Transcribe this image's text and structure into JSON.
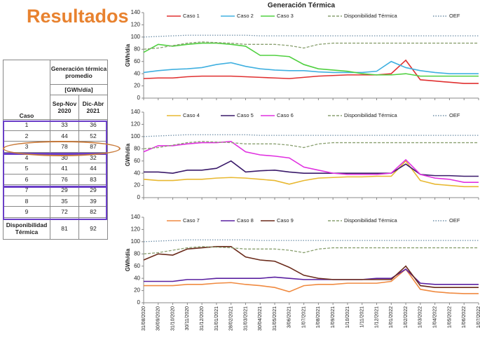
{
  "title": "Resultados",
  "table": {
    "header": {
      "group": "Generación térmica promedio",
      "unit": "[GWh/día]",
      "columns": [
        "Caso",
        "Sep-Nov 2020",
        "Dic-Abr 2021"
      ]
    },
    "rows": [
      [
        "1",
        33,
        36
      ],
      [
        "2",
        44,
        52
      ],
      [
        "3",
        78,
        87
      ],
      [
        "4",
        30,
        32
      ],
      [
        "5",
        41,
        44
      ],
      [
        "6",
        76,
        83
      ],
      [
        "7",
        29,
        29
      ],
      [
        "8",
        35,
        39
      ],
      [
        "9",
        72,
        82
      ],
      [
        "Disponibilidad Térmica",
        81,
        92
      ]
    ]
  },
  "chart_data": [
    {
      "type": "line",
      "title": "Generación Térmica",
      "ylabel": "GWh/día",
      "ylim": [
        0,
        140
      ],
      "yticks": [
        0,
        20,
        40,
        60,
        80,
        100,
        120,
        140
      ],
      "grid": false,
      "categories": [
        null,
        null,
        null,
        null,
        null,
        null,
        null,
        null,
        null,
        null,
        null,
        null,
        null,
        null,
        null,
        null,
        null,
        null,
        null,
        null,
        null,
        null,
        null,
        null
      ],
      "series": [
        {
          "name": "Caso 1",
          "color": "#e03030",
          "dash": "solid",
          "values": [
            32,
            33,
            33,
            35,
            36,
            36,
            36,
            35,
            34,
            33,
            32,
            34,
            36,
            37,
            38,
            38,
            38,
            40,
            62,
            30,
            28,
            26,
            24,
            24
          ]
        },
        {
          "name": "Caso 2",
          "color": "#40b0e0",
          "dash": "solid",
          "values": [
            42,
            45,
            47,
            48,
            50,
            55,
            58,
            52,
            48,
            46,
            45,
            45,
            43,
            42,
            42,
            42,
            44,
            60,
            50,
            45,
            42,
            40,
            40,
            40
          ]
        },
        {
          "name": "Caso 3",
          "color": "#50d040",
          "dash": "solid",
          "values": [
            75,
            88,
            85,
            88,
            90,
            90,
            88,
            85,
            70,
            70,
            68,
            55,
            48,
            46,
            44,
            40,
            38,
            38,
            40,
            36,
            36,
            36,
            36,
            36
          ]
        },
        {
          "name": "Disponibilidad Térmica",
          "color": "#8aa070",
          "dash": "dashed",
          "values": [
            80,
            82,
            86,
            90,
            92,
            91,
            90,
            88,
            88,
            88,
            86,
            82,
            88,
            90,
            90,
            90,
            90,
            90,
            90,
            90,
            90,
            90,
            90,
            90
          ]
        },
        {
          "name": "OEF",
          "color": "#6f8fa8",
          "dash": "dotted",
          "values": [
            100,
            101,
            102,
            103,
            103,
            103,
            103,
            103,
            102,
            102,
            102,
            102,
            102,
            102,
            102,
            102,
            102,
            102,
            102,
            102,
            102,
            102,
            102,
            102
          ]
        }
      ]
    },
    {
      "type": "line",
      "ylabel": "GWh/día",
      "ylim": [
        0,
        140
      ],
      "yticks": [
        0,
        20,
        40,
        60,
        80,
        100,
        120,
        140
      ],
      "grid": false,
      "categories": [
        null,
        null,
        null,
        null,
        null,
        null,
        null,
        null,
        null,
        null,
        null,
        null,
        null,
        null,
        null,
        null,
        null,
        null,
        null,
        null,
        null,
        null,
        null,
        null
      ],
      "series": [
        {
          "name": "Caso 4",
          "color": "#e8b830",
          "dash": "solid",
          "values": [
            30,
            28,
            28,
            30,
            30,
            32,
            33,
            32,
            30,
            28,
            22,
            28,
            32,
            33,
            34,
            34,
            35,
            35,
            60,
            28,
            22,
            20,
            18,
            18
          ]
        },
        {
          "name": "Caso 5",
          "color": "#3a1a6a",
          "dash": "solid",
          "values": [
            42,
            42,
            40,
            45,
            45,
            48,
            60,
            42,
            44,
            45,
            42,
            40,
            40,
            40,
            40,
            40,
            40,
            40,
            55,
            38,
            36,
            36,
            35,
            35
          ]
        },
        {
          "name": "Caso 6",
          "color": "#e030e0",
          "dash": "solid",
          "values": [
            75,
            85,
            85,
            88,
            90,
            90,
            92,
            75,
            70,
            68,
            65,
            50,
            45,
            40,
            38,
            38,
            38,
            40,
            62,
            38,
            32,
            30,
            25,
            25
          ]
        },
        {
          "name": "Disponibilidad Térmica",
          "color": "#8aa070",
          "dash": "dashed",
          "values": [
            80,
            82,
            86,
            90,
            92,
            91,
            90,
            88,
            88,
            88,
            86,
            82,
            88,
            90,
            90,
            90,
            90,
            90,
            90,
            90,
            90,
            90,
            90,
            90
          ]
        },
        {
          "name": "OEF",
          "color": "#6f8fa8",
          "dash": "dotted",
          "values": [
            100,
            101,
            102,
            103,
            103,
            103,
            103,
            103,
            102,
            102,
            102,
            102,
            102,
            102,
            102,
            102,
            102,
            102,
            102,
            102,
            102,
            102,
            102,
            102
          ]
        }
      ]
    },
    {
      "type": "line",
      "ylabel": "GWh/día",
      "ylim": [
        0,
        140
      ],
      "yticks": [
        0,
        20,
        40,
        60,
        80,
        100,
        120,
        140
      ],
      "grid": false,
      "categories": [
        "31/08/2020",
        "30/09/2020",
        "31/10/2020",
        "30/11/2020",
        "31/12/2020",
        "31/01/2021",
        "28/02/2021",
        "31/03/2021",
        "30/04/2021",
        "31/05/2021",
        "3/06/2021",
        "1/07/2021",
        "1/08/2021",
        "1/09/2021",
        "1/10/2021",
        "1/11/2021",
        "1/12/2021",
        "1/01/2022",
        "1/02/2022",
        "1/03/2022",
        "1/04/2022",
        "1/05/2022",
        "1/06/2022",
        "1/07/2022"
      ],
      "series": [
        {
          "name": "Caso 7",
          "color": "#f08a40",
          "dash": "solid",
          "values": [
            28,
            28,
            28,
            30,
            30,
            32,
            33,
            30,
            28,
            25,
            18,
            28,
            30,
            30,
            32,
            32,
            32,
            35,
            55,
            22,
            18,
            16,
            15,
            15
          ]
        },
        {
          "name": "Caso 8",
          "color": "#5a20a0",
          "dash": "solid",
          "values": [
            35,
            35,
            35,
            38,
            38,
            40,
            40,
            40,
            40,
            42,
            40,
            38,
            38,
            38,
            38,
            38,
            40,
            40,
            55,
            32,
            30,
            30,
            30,
            30
          ]
        },
        {
          "name": "Caso 9",
          "color": "#6a2a1a",
          "dash": "solid",
          "values": [
            70,
            80,
            78,
            88,
            90,
            92,
            92,
            75,
            70,
            68,
            58,
            45,
            40,
            38,
            38,
            38,
            38,
            38,
            60,
            28,
            25,
            25,
            25,
            25
          ]
        },
        {
          "name": "Disponibilidad Térmica",
          "color": "#8aa070",
          "dash": "dashed",
          "values": [
            80,
            82,
            86,
            90,
            92,
            91,
            90,
            88,
            88,
            88,
            86,
            82,
            88,
            90,
            90,
            90,
            90,
            90,
            90,
            90,
            90,
            90,
            90,
            90
          ]
        },
        {
          "name": "OEF",
          "color": "#6f8fa8",
          "dash": "dotted",
          "values": [
            100,
            101,
            102,
            103,
            103,
            103,
            103,
            103,
            102,
            102,
            102,
            102,
            102,
            102,
            102,
            102,
            102,
            102,
            102,
            102,
            102,
            102,
            102,
            102
          ]
        }
      ]
    }
  ]
}
